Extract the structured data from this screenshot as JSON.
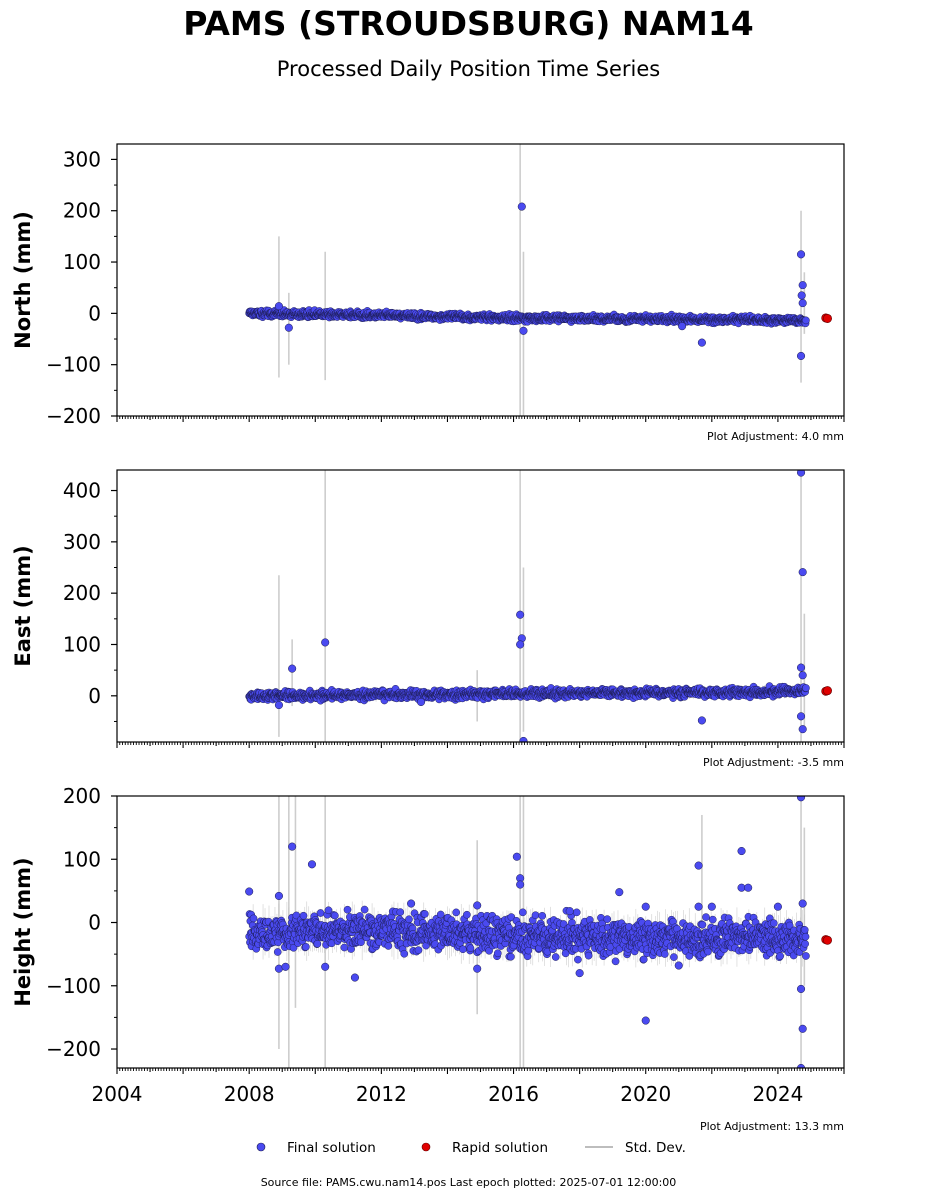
{
  "title": "PAMS (STROUDSBURG) NAM14",
  "subtitle": "Processed Daily Position Time Series",
  "footer": "Source file: PAMS.cwu.nam14.pos  Last epoch plotted: 2025-07-01 12:00:00",
  "legend": {
    "final": "Final solution",
    "rapid": "Rapid solution",
    "std": "Std. Dev."
  },
  "colors": {
    "final": "#4a4af0",
    "rapid": "#e00000",
    "std": "#bdbdbd"
  },
  "chart_data": [
    {
      "type": "scatter",
      "ylabel": "North (mm)",
      "adjustment": "Plot Adjustment: 4.0 mm",
      "xlim": [
        2004,
        2026
      ],
      "ylim": [
        -200,
        330
      ],
      "yticks": [
        -200,
        -100,
        0,
        100,
        200,
        300
      ],
      "ytick_labels": [
        "−200",
        "−100",
        "0",
        "100",
        "200",
        "300"
      ],
      "trend": [
        [
          2008.0,
          0
        ],
        [
          2012.0,
          -4
        ],
        [
          2016.0,
          -9
        ],
        [
          2020.0,
          -11
        ],
        [
          2024.0,
          -13
        ],
        [
          2024.8,
          -14
        ]
      ],
      "scatter": 3,
      "outliers": [
        [
          2009.2,
          -28
        ],
        [
          2008.9,
          14
        ],
        [
          2016.25,
          208
        ],
        [
          2016.3,
          -34
        ],
        [
          2021.7,
          -57
        ],
        [
          2021.1,
          -25
        ],
        [
          2024.7,
          115
        ],
        [
          2024.75,
          55
        ],
        [
          2024.72,
          35
        ],
        [
          2024.75,
          20
        ],
        [
          2024.7,
          -83
        ]
      ],
      "stddev": [
        [
          2008.9,
          -125,
          150
        ],
        [
          2009.2,
          -100,
          40
        ],
        [
          2010.3,
          -130,
          120
        ],
        [
          2016.2,
          -200,
          330
        ],
        [
          2016.3,
          -200,
          120
        ],
        [
          2024.7,
          -135,
          200
        ],
        [
          2024.8,
          -40,
          80
        ]
      ],
      "rapid": [
        [
          2025.45,
          -9
        ],
        [
          2025.5,
          -10
        ]
      ]
    },
    {
      "type": "scatter",
      "ylabel": "East (mm)",
      "adjustment": "Plot Adjustment: -3.5 mm",
      "xlim": [
        2004,
        2026
      ],
      "ylim": [
        -90,
        440
      ],
      "yticks": [
        0,
        100,
        200,
        300,
        400
      ],
      "ytick_labels": [
        "0",
        "100",
        "200",
        "300",
        "400"
      ],
      "trend": [
        [
          2008.0,
          0
        ],
        [
          2012.0,
          2
        ],
        [
          2016.0,
          4
        ],
        [
          2020.0,
          6
        ],
        [
          2024.0,
          8
        ],
        [
          2024.8,
          9
        ]
      ],
      "scatter": 4,
      "outliers": [
        [
          2009.3,
          53
        ],
        [
          2010.3,
          104
        ],
        [
          2008.9,
          -18
        ],
        [
          2013.2,
          -12
        ],
        [
          2016.2,
          158
        ],
        [
          2016.25,
          112
        ],
        [
          2016.2,
          100
        ],
        [
          2016.3,
          -88
        ],
        [
          2021.7,
          -48
        ],
        [
          2024.7,
          435
        ],
        [
          2024.75,
          241
        ],
        [
          2024.7,
          55
        ],
        [
          2024.75,
          40
        ],
        [
          2024.7,
          -40
        ],
        [
          2024.75,
          -65
        ]
      ],
      "stddev": [
        [
          2008.9,
          -80,
          235
        ],
        [
          2009.3,
          -20,
          110
        ],
        [
          2010.3,
          -90,
          440
        ],
        [
          2014.9,
          -50,
          50
        ],
        [
          2016.2,
          -90,
          440
        ],
        [
          2016.3,
          -70,
          250
        ],
        [
          2024.7,
          -90,
          440
        ],
        [
          2024.8,
          -60,
          160
        ]
      ],
      "rapid": [
        [
          2025.45,
          9
        ],
        [
          2025.5,
          10
        ]
      ]
    },
    {
      "type": "scatter",
      "ylabel": "Height (mm)",
      "adjustment": "Plot Adjustment: 13.3 mm",
      "xlim": [
        2004,
        2026
      ],
      "ylim": [
        -230,
        200
      ],
      "yticks": [
        -200,
        -100,
        0,
        100,
        200
      ],
      "ytick_labels": [
        "−200",
        "−100",
        "0",
        "100",
        "200"
      ],
      "xticks": [
        2004,
        2008,
        2012,
        2016,
        2020,
        2024
      ],
      "trend": [
        [
          2008.0,
          -15
        ],
        [
          2012.0,
          -12
        ],
        [
          2016.0,
          -22
        ],
        [
          2020.0,
          -25
        ],
        [
          2024.0,
          -22
        ],
        [
          2024.8,
          -25
        ]
      ],
      "scatter": 14,
      "outliers": [
        [
          2008.0,
          49
        ],
        [
          2008.9,
          42
        ],
        [
          2009.3,
          120
        ],
        [
          2009.9,
          92
        ],
        [
          2008.9,
          -73
        ],
        [
          2009.1,
          -70
        ],
        [
          2010.3,
          -70
        ],
        [
          2011.2,
          -87
        ],
        [
          2012.9,
          30
        ],
        [
          2014.9,
          27
        ],
        [
          2014.9,
          -73
        ],
        [
          2016.1,
          104
        ],
        [
          2016.2,
          70
        ],
        [
          2016.2,
          60
        ],
        [
          2017.7,
          18
        ],
        [
          2019.2,
          48
        ],
        [
          2020.0,
          25
        ],
        [
          2020.0,
          -155
        ],
        [
          2021.6,
          90
        ],
        [
          2021.6,
          25
        ],
        [
          2022.0,
          25
        ],
        [
          2022.9,
          113
        ],
        [
          2022.9,
          55
        ],
        [
          2023.1,
          55
        ],
        [
          2024.0,
          25
        ],
        [
          2024.7,
          198
        ],
        [
          2024.75,
          30
        ],
        [
          2024.7,
          -105
        ],
        [
          2024.75,
          -168
        ],
        [
          2024.7,
          -230
        ],
        [
          2021.0,
          -68
        ],
        [
          2018.0,
          -80
        ]
      ],
      "stddev": [
        [
          2008.9,
          -200,
          200
        ],
        [
          2009.2,
          -230,
          200
        ],
        [
          2009.4,
          -135,
          200
        ],
        [
          2010.3,
          -230,
          200
        ],
        [
          2014.9,
          -145,
          130
        ],
        [
          2016.2,
          -230,
          200
        ],
        [
          2016.3,
          -230,
          200
        ],
        [
          2021.7,
          -30,
          170
        ],
        [
          2024.7,
          -230,
          200
        ],
        [
          2024.8,
          -100,
          150
        ]
      ],
      "rapid": [
        [
          2025.45,
          -27
        ],
        [
          2025.5,
          -28
        ]
      ]
    }
  ]
}
